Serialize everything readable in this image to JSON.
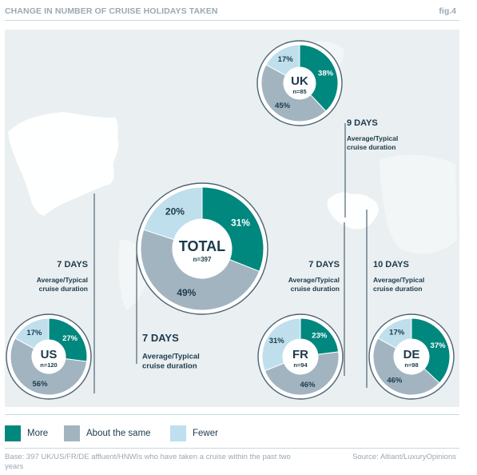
{
  "header": {
    "title": "CHANGE IN NUMBER OF CRUISE HOLIDAYS TAKEN",
    "fig": "fig.4"
  },
  "colors": {
    "more": "#00877e",
    "same": "#a3b4c1",
    "fewer": "#bfdfec",
    "line": "#4e6472",
    "map_bg": "#eaeff1",
    "land": "#ffffff"
  },
  "chart_data": {
    "type": "pie",
    "categories": [
      "More",
      "About the same",
      "Fewer"
    ],
    "charts": [
      {
        "region": "UK",
        "n": "n=85",
        "values": [
          38,
          45,
          17
        ],
        "labels": [
          "38%",
          "45%",
          "17%"
        ],
        "days": "9 DAYS",
        "duration_label": [
          "Average/Typical",
          "cruise duration"
        ]
      },
      {
        "region": "TOTAL",
        "n": "n=397",
        "values": [
          31,
          49,
          20
        ],
        "labels": [
          "31%",
          "49%",
          "20%"
        ],
        "days": "7 DAYS",
        "duration_label": [
          "Average/Typical",
          "cruise duration"
        ]
      },
      {
        "region": "US",
        "n": "n=120",
        "values": [
          27,
          56,
          17
        ],
        "labels": [
          "27%",
          "56%",
          "17%"
        ],
        "days": "7 DAYS",
        "duration_label": [
          "Average/Typical",
          "cruise duration"
        ]
      },
      {
        "region": "FR",
        "n": "n=94",
        "values": [
          23,
          46,
          31
        ],
        "labels": [
          "23%",
          "46%",
          "31%"
        ],
        "days": "7 DAYS",
        "duration_label": [
          "Average/Typical",
          "cruise duration"
        ]
      },
      {
        "region": "DE",
        "n": "n=98",
        "values": [
          37,
          46,
          17
        ],
        "labels": [
          "37%",
          "46%",
          "17%"
        ],
        "days": "10 DAYS",
        "duration_label": [
          "Average/Typical",
          "cruise duration"
        ]
      }
    ]
  },
  "legend": [
    {
      "label": "More",
      "color": "#00877e"
    },
    {
      "label": "About the same",
      "color": "#a3b4c1"
    },
    {
      "label": "Fewer",
      "color": "#bfdfec"
    }
  ],
  "footer": {
    "base": "Base: 397 UK/US/FR/DE affluent/HNWIs who have taken a cruise within the past two years",
    "source": "Source: Altiant/LuxuryOpinions"
  }
}
